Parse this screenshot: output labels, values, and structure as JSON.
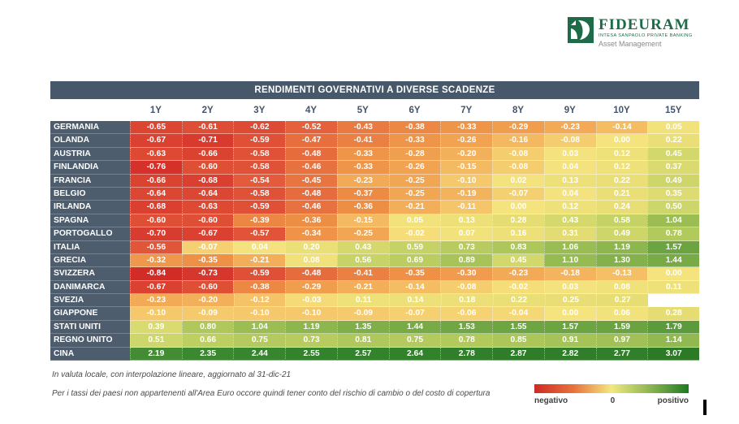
{
  "logo": {
    "brand": "FIDEURAM",
    "sub_brand": "INTESA SANPAOLO PRIVATE BANKING",
    "division": "Asset Management"
  },
  "notes": [
    "In valuta locale, con interpolazione lineare, aggiornato al 31-dic-21",
    "Per i tassi dei paesi non appartenenti all'Area Euro occore quindi tener conto del rischio di cambio o del costo di copertura"
  ],
  "legend": {
    "negative_label": "negativo",
    "zero_label": "0",
    "positive_label": "positivo"
  },
  "colors": {
    "title_bar": "#47586B",
    "row_label_bg": "#4D5D6E",
    "header_text": "#44546A",
    "negative": "#CE2A23",
    "zero": "#F5E37E",
    "positive": "#1F7A22",
    "brand_green": "#1E6B49"
  },
  "chart_data": {
    "type": "heatmap",
    "title": "RENDIMENTI GOVERNATIVI A DIVERSE SCADENZE",
    "columns": [
      "1Y",
      "2Y",
      "3Y",
      "4Y",
      "5Y",
      "6Y",
      "7Y",
      "8Y",
      "9Y",
      "10Y",
      "15Y"
    ],
    "value_range": [
      -0.84,
      3.07
    ],
    "legend_position": "bottom-right",
    "rows": [
      {
        "label": "GERMANIA",
        "values": [
          -0.65,
          -0.61,
          -0.62,
          -0.52,
          -0.43,
          -0.38,
          -0.33,
          -0.29,
          -0.23,
          -0.14,
          0.05
        ]
      },
      {
        "label": "OLANDA",
        "values": [
          -0.67,
          -0.71,
          -0.59,
          -0.47,
          -0.41,
          -0.33,
          -0.26,
          -0.16,
          -0.08,
          0.0,
          0.22
        ]
      },
      {
        "label": "AUSTRIA",
        "values": [
          -0.63,
          -0.66,
          -0.58,
          -0.48,
          -0.33,
          -0.28,
          -0.2,
          -0.08,
          0.03,
          0.12,
          0.45
        ]
      },
      {
        "label": "FINLANDIA",
        "values": [
          -0.76,
          -0.6,
          -0.58,
          -0.46,
          -0.33,
          -0.26,
          -0.15,
          -0.08,
          0.04,
          0.12,
          0.37
        ]
      },
      {
        "label": "FRANCIA",
        "values": [
          -0.66,
          -0.68,
          -0.54,
          -0.45,
          -0.23,
          -0.25,
          -0.1,
          0.02,
          0.13,
          0.22,
          0.49
        ]
      },
      {
        "label": "BELGIO",
        "values": [
          -0.64,
          -0.64,
          -0.58,
          -0.48,
          -0.37,
          -0.25,
          -0.19,
          -0.07,
          0.04,
          0.21,
          0.35
        ]
      },
      {
        "label": "IRLANDA",
        "values": [
          -0.68,
          -0.63,
          -0.59,
          -0.46,
          -0.36,
          -0.21,
          -0.11,
          0.0,
          0.12,
          0.24,
          0.5
        ]
      },
      {
        "label": "SPAGNA",
        "values": [
          -0.6,
          -0.6,
          -0.39,
          -0.36,
          -0.15,
          0.05,
          0.13,
          0.28,
          0.43,
          0.58,
          1.04
        ]
      },
      {
        "label": "PORTOGALLO",
        "values": [
          -0.7,
          -0.67,
          -0.57,
          -0.34,
          -0.25,
          -0.02,
          0.07,
          0.16,
          0.31,
          0.49,
          0.78
        ]
      },
      {
        "label": "ITALIA",
        "values": [
          -0.56,
          -0.07,
          0.04,
          0.2,
          0.43,
          0.59,
          0.73,
          0.83,
          1.06,
          1.19,
          1.57
        ]
      },
      {
        "label": "GRECIA",
        "values": [
          -0.32,
          -0.35,
          -0.21,
          0.08,
          0.56,
          0.69,
          0.89,
          0.45,
          1.1,
          1.3,
          1.44
        ]
      },
      {
        "label": "SVIZZERA",
        "values": [
          -0.84,
          -0.73,
          -0.59,
          -0.48,
          -0.41,
          -0.35,
          -0.3,
          -0.23,
          -0.18,
          -0.13,
          0.0
        ]
      },
      {
        "label": "DANIMARCA",
        "values": [
          -0.67,
          -0.6,
          -0.38,
          -0.29,
          -0.21,
          -0.14,
          -0.08,
          -0.02,
          0.03,
          0.08,
          0.11
        ]
      },
      {
        "label": "SVEZIA",
        "values": [
          -0.23,
          -0.2,
          -0.12,
          -0.03,
          0.11,
          0.14,
          0.18,
          0.22,
          0.25,
          0.27,
          null
        ]
      },
      {
        "label": "GIAPPONE",
        "values": [
          -0.1,
          -0.09,
          -0.1,
          -0.1,
          -0.09,
          -0.07,
          -0.06,
          -0.04,
          0.0,
          0.06,
          0.28
        ]
      },
      {
        "label": "STATI UNITI",
        "values": [
          0.39,
          0.8,
          1.04,
          1.19,
          1.35,
          1.44,
          1.53,
          1.55,
          1.57,
          1.59,
          1.79
        ]
      },
      {
        "label": "REGNO UNITO",
        "values": [
          0.51,
          0.66,
          0.75,
          0.73,
          0.81,
          0.75,
          0.78,
          0.85,
          0.91,
          0.97,
          1.14
        ]
      },
      {
        "label": "CINA",
        "values": [
          2.19,
          2.35,
          2.44,
          2.55,
          2.57,
          2.64,
          2.78,
          2.87,
          2.82,
          2.77,
          3.07
        ]
      }
    ]
  }
}
